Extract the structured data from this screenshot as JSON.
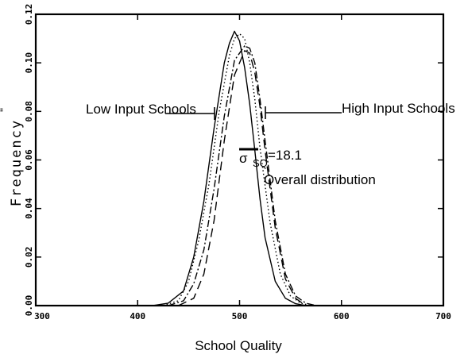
{
  "chart_data": {
    "type": "line",
    "xlabel": "School Quality",
    "ylabel": "Frequency",
    "xlim": [
      300,
      700
    ],
    "ylim": [
      0,
      0.12
    ],
    "xticks": [
      300,
      400,
      500,
      600,
      700
    ],
    "yticks": [
      0,
      0.02,
      0.04,
      0.06,
      0.08,
      0.1,
      0.12
    ],
    "xtick_labels": [
      "300",
      "400",
      "500",
      "600",
      "700"
    ],
    "ytick_labels": [
      "0.00",
      "0.02",
      "0.04",
      "0.06",
      "0.08",
      "0.10",
      "0.12"
    ],
    "grid": false,
    "series": [
      {
        "style": "solid",
        "x": [
          415,
          430,
          445,
          455,
          465,
          475,
          485,
          490,
          495,
          500,
          505,
          510,
          515,
          520,
          525,
          535,
          545,
          555,
          565
        ],
        "y": [
          0,
          0.001,
          0.006,
          0.02,
          0.043,
          0.073,
          0.1,
          0.108,
          0.113,
          0.109,
          0.098,
          0.083,
          0.064,
          0.044,
          0.028,
          0.01,
          0.003,
          0.0008,
          0
        ]
      },
      {
        "style": "dotted",
        "x": [
          425,
          440,
          450,
          460,
          470,
          480,
          490,
          495,
          500,
          505,
          510,
          515,
          520,
          530,
          540,
          550,
          560,
          570
        ],
        "y": [
          0,
          0.002,
          0.01,
          0.027,
          0.05,
          0.08,
          0.103,
          0.11,
          0.112,
          0.11,
          0.1,
          0.085,
          0.065,
          0.034,
          0.013,
          0.004,
          0.001,
          0
        ]
      },
      {
        "style": "dash-dot",
        "x": [
          430,
          445,
          455,
          465,
          475,
          485,
          495,
          505,
          510,
          515,
          520,
          525,
          535,
          545,
          555,
          565,
          575
        ],
        "y": [
          0,
          0.002,
          0.009,
          0.023,
          0.048,
          0.078,
          0.101,
          0.107,
          0.106,
          0.1,
          0.085,
          0.068,
          0.035,
          0.013,
          0.004,
          0.001,
          0
        ]
      },
      {
        "style": "dashed",
        "x": [
          440,
          455,
          465,
          475,
          485,
          495,
          505,
          510,
          515,
          520,
          525,
          535,
          545,
          555,
          565
        ],
        "y": [
          0,
          0.003,
          0.013,
          0.035,
          0.068,
          0.095,
          0.105,
          0.104,
          0.096,
          0.082,
          0.064,
          0.032,
          0.011,
          0.003,
          0
        ]
      }
    ],
    "annotations": {
      "low": "Low Input Schools",
      "high": "High Input Schools",
      "sigma_symbol": "σ",
      "sigma_sub": "SQ",
      "sigma_value": "=18.1",
      "overall": "Overall distribution",
      "corner_mark": "\""
    }
  }
}
